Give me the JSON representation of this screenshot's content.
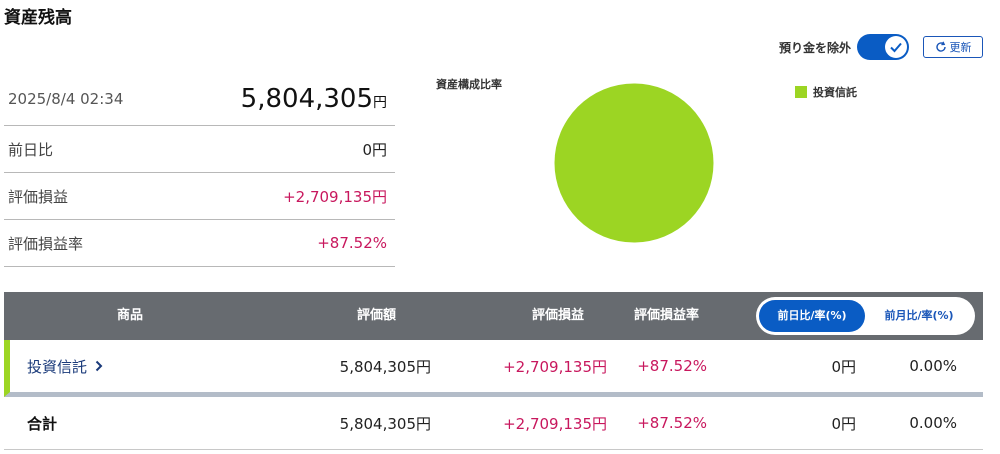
{
  "page": {
    "title": "資産残高"
  },
  "controls": {
    "exclude_deposit_label": "預り金を除外",
    "exclude_deposit_on": true,
    "refresh_label": "更新"
  },
  "summary": {
    "date": "2025/8/4 02:34",
    "total_value": "5,804,305",
    "total_unit": "円",
    "rows": [
      {
        "label": "前日比",
        "value": "0円"
      },
      {
        "label": "評価損益",
        "value": "+2,709,135円"
      },
      {
        "label": "評価損益率",
        "value": "+87.52%"
      }
    ]
  },
  "allocation": {
    "title": "資産構成比率",
    "legend": [
      {
        "name": "投資信託",
        "color": "#9cd523"
      }
    ]
  },
  "chart_data": {
    "type": "pie",
    "title": "資産構成比率",
    "slices": [
      {
        "label": "投資信託",
        "value": 100,
        "color": "#9cd523"
      }
    ],
    "legend_position": "top-right"
  },
  "table": {
    "headers": {
      "product": "商品",
      "valuation": "評価額",
      "gain": "評価損益",
      "gain_rate": "評価損益率"
    },
    "toggle": {
      "active": "前日比/率(%)",
      "inactive": "前月比/率(%)"
    },
    "rows": [
      {
        "product": "投資信託",
        "valuation": "5,804,305円",
        "gain": "+2,709,135円",
        "gain_rate": "+87.52%",
        "change": "0円",
        "change_rate": "0.00%"
      }
    ],
    "total": {
      "label": "合計",
      "valuation": "5,804,305円",
      "gain": "+2,709,135円",
      "gain_rate": "+87.52%",
      "change": "0円",
      "change_rate": "0.00%"
    }
  }
}
